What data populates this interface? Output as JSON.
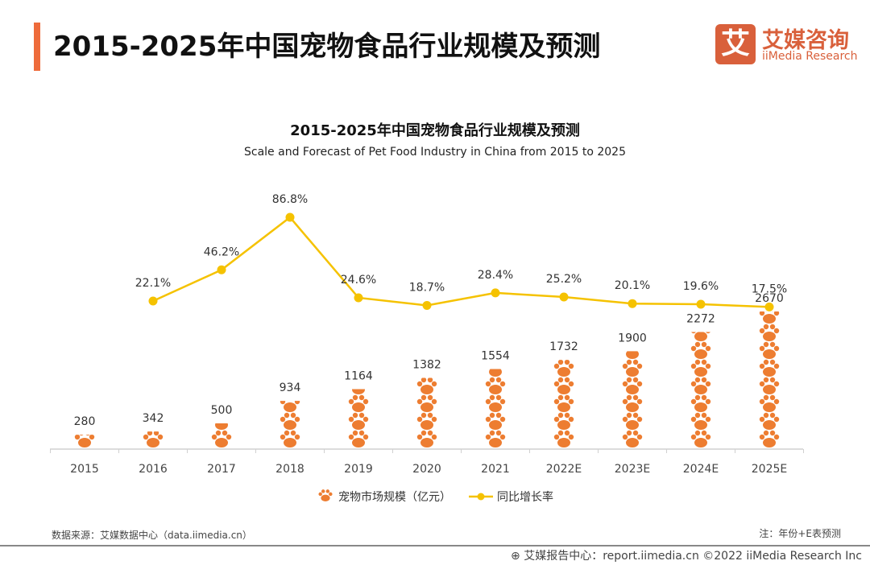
{
  "header": {
    "title": "2015-2025年中国宠物食品行业规模及预测"
  },
  "logo": {
    "mark": "艾",
    "cn": "艾媒咨询",
    "en": "iiMedia Research"
  },
  "chart_data": {
    "type": "bar+line",
    "title": "2015-2025年中国宠物食品行业规模及预测",
    "subtitle": "Scale and Forecast of Pet Food Industry in China from 2015 to 2025",
    "categories": [
      "2015",
      "2016",
      "2017",
      "2018",
      "2019",
      "2020",
      "2021",
      "2022E",
      "2023E",
      "2024E",
      "2025E"
    ],
    "series": [
      {
        "name": "宠物市场规模（亿元）",
        "type": "bar",
        "icon": "paw",
        "color": "#ed7d31",
        "values": [
          280,
          342,
          500,
          934,
          1164,
          1382,
          1554,
          1732,
          1900,
          2272,
          2670
        ]
      },
      {
        "name": "同比增长率",
        "type": "line",
        "color": "#f5c200",
        "values": [
          null,
          22.1,
          46.2,
          86.8,
          24.6,
          18.7,
          28.4,
          25.2,
          20.1,
          19.6,
          17.5
        ],
        "labels": [
          "",
          "22.1%",
          "46.2%",
          "86.8%",
          "24.6%",
          "18.7%",
          "28.4%",
          "25.2%",
          "20.1%",
          "19.6%",
          "17.5%"
        ]
      }
    ],
    "legend": "bottom",
    "grid": false
  },
  "footer": {
    "source": "数据来源：艾媒数据中心（data.iimedia.cn）",
    "note": "注：年份+E表预测",
    "credit": "艾媒报告中心：report.iimedia.cn  ©2022  iiMedia Research  Inc"
  }
}
